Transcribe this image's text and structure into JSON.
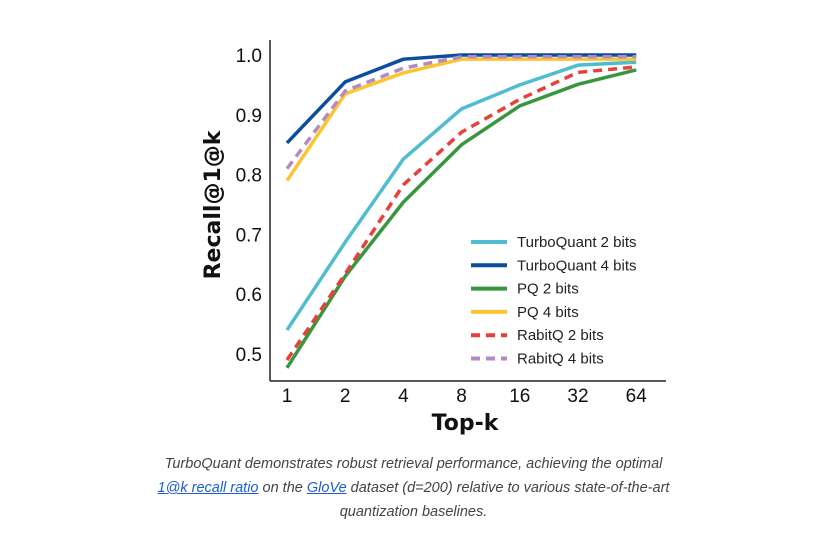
{
  "chart_data": {
    "type": "line",
    "xlabel": "Top-k",
    "ylabel": "Recall@1@k",
    "x": [
      1,
      2,
      4,
      8,
      16,
      32,
      64
    ],
    "x_tick_labels": [
      "1",
      "2",
      "4",
      "8",
      "16",
      "32",
      "64"
    ],
    "x_scale": "log2",
    "ylim": [
      0.5,
      1.0
    ],
    "y_ticks": [
      0.5,
      0.6,
      0.7,
      0.8,
      0.9,
      1.0
    ],
    "y_tick_labels": [
      "0.5",
      "0.6",
      "0.7",
      "0.8",
      "0.9",
      "1.0"
    ],
    "grid": false,
    "legend_position": "bottom-right",
    "series": [
      {
        "name": "TurboQuant 2 bits",
        "color": "#4fbcd0",
        "dash": false,
        "values": [
          0.54,
          0.687,
          0.826,
          0.91,
          0.95,
          0.983,
          0.988
        ]
      },
      {
        "name": "TurboQuant 4 bits",
        "color": "#0b4f9c",
        "dash": false,
        "values": [
          0.853,
          0.955,
          0.993,
          1.0,
          1.0,
          1.0,
          1.0
        ]
      },
      {
        "name": "PQ 2 bits",
        "color": "#38963f",
        "dash": false,
        "values": [
          0.477,
          0.63,
          0.754,
          0.85,
          0.915,
          0.951,
          0.975
        ]
      },
      {
        "name": "PQ 4 bits",
        "color": "#fbc531",
        "dash": false,
        "values": [
          0.79,
          0.935,
          0.97,
          0.993,
          0.993,
          0.993,
          0.993
        ]
      },
      {
        "name": "RabitQ 2 bits",
        "color": "#e8413c",
        "dash": true,
        "values": [
          0.49,
          0.634,
          0.783,
          0.871,
          0.926,
          0.971,
          0.98
        ]
      },
      {
        "name": "RabitQ 4 bits",
        "color": "#b48ac6",
        "dash": true,
        "values": [
          0.81,
          0.94,
          0.978,
          0.997,
          0.997,
          0.997,
          0.997
        ]
      }
    ]
  },
  "caption": {
    "before": "TurboQuant demonstrates robust retrieval performance, achieving the optimal ",
    "link1": "1@k recall ratio",
    "middle": " on the ",
    "link2": "GloVe",
    "after": " dataset (d=200) relative to various state-of-the-art quantization baselines."
  }
}
